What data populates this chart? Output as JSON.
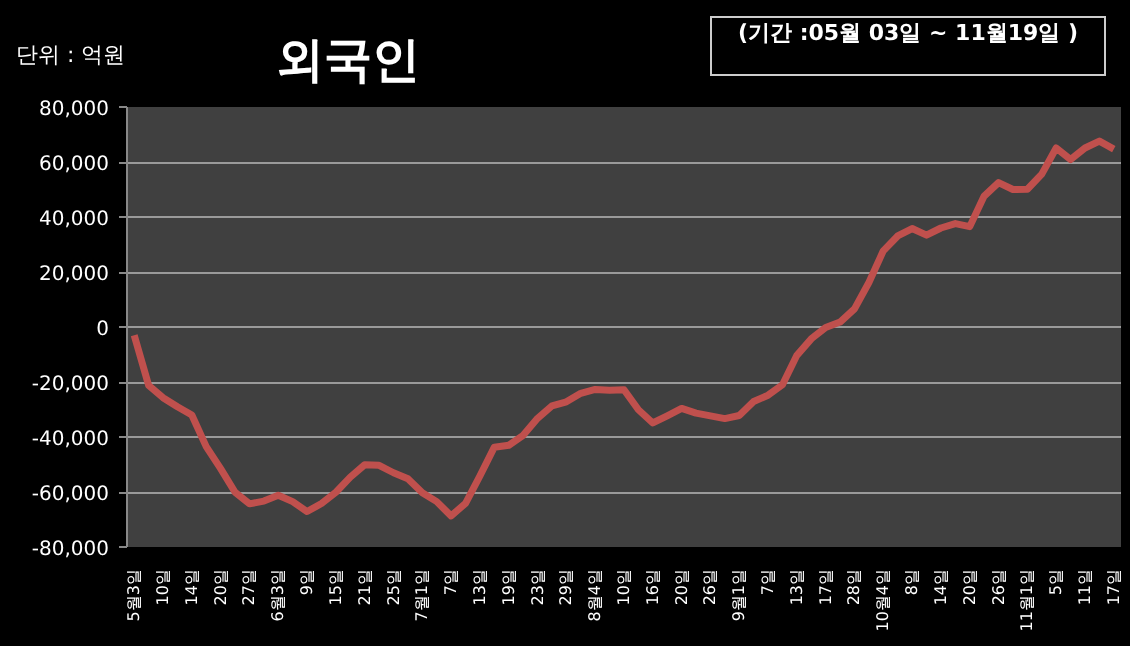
{
  "chart_data": {
    "type": "line",
    "title": "외국인",
    "annotations": [
      "단위 : 억원",
      "(기간 :05월 03일 ~ 11월19일 )"
    ],
    "categories": [
      "5월3일",
      null,
      "10일",
      null,
      "14일",
      null,
      "20일",
      null,
      "27일",
      null,
      "6월3일",
      null,
      "9일",
      null,
      "15일",
      null,
      "21일",
      null,
      "25일",
      null,
      "7월1일",
      null,
      "7일",
      null,
      "13일",
      null,
      "19일",
      null,
      "23일",
      null,
      "29일",
      null,
      "8월4일",
      null,
      "10일",
      null,
      "16일",
      null,
      "20일",
      null,
      "26일",
      null,
      "9월1일",
      null,
      "7일",
      null,
      "13일",
      null,
      "17일",
      null,
      "28일",
      null,
      "10월4일",
      null,
      "8일",
      null,
      "14일",
      null,
      "20일",
      null,
      "26일",
      null,
      "11월1일",
      null,
      "5일",
      null,
      "11일",
      null,
      "17일"
    ],
    "ylim": [
      -80000,
      80000
    ],
    "yticks": [
      {
        "value": -80000,
        "label": "-80,000"
      },
      {
        "value": -60000,
        "label": "-60,000"
      },
      {
        "value": -40000,
        "label": "-40,000"
      },
      {
        "value": -20000,
        "label": "-20,000"
      },
      0,
      {
        "value": 20000,
        "label": "20,000"
      },
      {
        "value": 40000,
        "label": "40,000"
      },
      {
        "value": 60000,
        "label": "60,000"
      },
      {
        "value": 80000,
        "label": "80,000"
      }
    ],
    "grid": "y",
    "line_style": "solid",
    "series": [
      {
        "color": "#c0504d",
        "values": [
          -3000,
          -21200,
          -25700,
          -29000,
          -32000,
          -43500,
          -51500,
          -60100,
          -64300,
          -63300,
          -61200,
          -63500,
          -67100,
          -64200,
          -60100,
          -54600,
          -50100,
          -50300,
          -53000,
          -55200,
          -60300,
          -63500,
          -68700,
          -64100,
          -54100,
          -43700,
          -43000,
          -39400,
          -33200,
          -28700,
          -27200,
          -24100,
          -22700,
          -23000,
          -22800,
          -30100,
          -34900,
          -32300,
          -29600,
          -31300,
          -32300,
          -33300,
          -32200,
          -27100,
          -24800,
          -21000,
          -10300,
          -4300,
          -200,
          1800,
          6600,
          16200,
          27700,
          33100,
          35800,
          33400,
          36000,
          37600,
          36500,
          47600,
          52500,
          50000,
          50100,
          55600,
          65100,
          60900,
          65100,
          67600,
          64700
        ]
      }
    ]
  }
}
